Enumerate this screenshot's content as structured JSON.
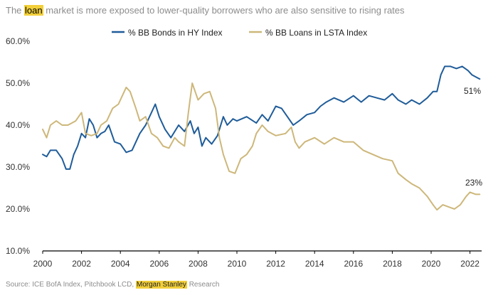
{
  "title": {
    "before": "The ",
    "highlight": "loan",
    "after": " market is more exposed to lower-quality borrowers who are also sensitive to rising rates"
  },
  "source": {
    "before": "Source: ICE BofA Index, Pitchbook LCD, ",
    "highlight": "Morgan Stanley",
    "after": " Research"
  },
  "colors": {
    "bonds": "#1f5c99",
    "loans": "#cdb77a",
    "axis": "#000000",
    "highlight": "#f2cf3a"
  },
  "chart_data": {
    "type": "line",
    "ylim": [
      10,
      60
    ],
    "yticks": [
      10,
      20,
      30,
      40,
      50,
      60
    ],
    "ytick_labels": [
      "10.0%",
      "20.0%",
      "30.0%",
      "40.0%",
      "50.0%",
      "60.0%"
    ],
    "xlim": [
      2000,
      2022.6
    ],
    "xticks": [
      2000,
      2002,
      2004,
      2006,
      2008,
      2010,
      2012,
      2014,
      2016,
      2018,
      2020,
      2022
    ],
    "xtick_labels": [
      "2000",
      "2002",
      "2004",
      "2006",
      "2008",
      "2010",
      "2012",
      "2014",
      "2016",
      "2018",
      "2020",
      "2022"
    ],
    "grid": false,
    "legend": "top-center",
    "series": [
      {
        "name": "% BB Bonds in HY Index",
        "end_label": "51%",
        "points": [
          [
            2000.0,
            33.0
          ],
          [
            2000.2,
            32.5
          ],
          [
            2000.4,
            34.0
          ],
          [
            2000.7,
            34.0
          ],
          [
            2001.0,
            32.0
          ],
          [
            2001.2,
            29.5
          ],
          [
            2001.4,
            29.5
          ],
          [
            2001.6,
            33.0
          ],
          [
            2001.8,
            35.0
          ],
          [
            2002.0,
            38.0
          ],
          [
            2002.2,
            37.0
          ],
          [
            2002.4,
            41.5
          ],
          [
            2002.6,
            40.0
          ],
          [
            2002.8,
            37.0
          ],
          [
            2003.0,
            38.0
          ],
          [
            2003.2,
            38.5
          ],
          [
            2003.4,
            40.0
          ],
          [
            2003.7,
            36.0
          ],
          [
            2004.0,
            35.5
          ],
          [
            2004.3,
            33.5
          ],
          [
            2004.6,
            34.0
          ],
          [
            2005.0,
            38.0
          ],
          [
            2005.3,
            40.0
          ],
          [
            2005.6,
            43.0
          ],
          [
            2005.8,
            45.0
          ],
          [
            2006.0,
            42.0
          ],
          [
            2006.3,
            39.0
          ],
          [
            2006.6,
            37.0
          ],
          [
            2007.0,
            40.0
          ],
          [
            2007.3,
            38.5
          ],
          [
            2007.6,
            41.0
          ],
          [
            2007.8,
            38.0
          ],
          [
            2008.0,
            39.5
          ],
          [
            2008.2,
            35.0
          ],
          [
            2008.4,
            37.0
          ],
          [
            2008.7,
            35.5
          ],
          [
            2009.0,
            37.5
          ],
          [
            2009.3,
            42.0
          ],
          [
            2009.5,
            40.0
          ],
          [
            2009.8,
            41.5
          ],
          [
            2010.0,
            41.0
          ],
          [
            2010.5,
            42.0
          ],
          [
            2011.0,
            40.5
          ],
          [
            2011.3,
            42.5
          ],
          [
            2011.6,
            41.0
          ],
          [
            2012.0,
            44.5
          ],
          [
            2012.3,
            44.0
          ],
          [
            2012.6,
            42.0
          ],
          [
            2012.9,
            40.0
          ],
          [
            2013.2,
            41.0
          ],
          [
            2013.6,
            42.5
          ],
          [
            2014.0,
            43.0
          ],
          [
            2014.3,
            44.5
          ],
          [
            2014.6,
            45.5
          ],
          [
            2015.0,
            46.5
          ],
          [
            2015.5,
            45.5
          ],
          [
            2016.0,
            47.0
          ],
          [
            2016.4,
            45.5
          ],
          [
            2016.8,
            47.0
          ],
          [
            2017.2,
            46.5
          ],
          [
            2017.6,
            46.0
          ],
          [
            2018.0,
            47.5
          ],
          [
            2018.3,
            46.0
          ],
          [
            2018.7,
            45.0
          ],
          [
            2019.0,
            46.0
          ],
          [
            2019.4,
            45.0
          ],
          [
            2019.8,
            46.5
          ],
          [
            2020.1,
            48.0
          ],
          [
            2020.3,
            48.0
          ],
          [
            2020.5,
            52.0
          ],
          [
            2020.7,
            54.0
          ],
          [
            2021.0,
            54.0
          ],
          [
            2021.3,
            53.5
          ],
          [
            2021.6,
            54.0
          ],
          [
            2021.9,
            53.0
          ],
          [
            2022.1,
            52.0
          ],
          [
            2022.3,
            51.5
          ],
          [
            2022.5,
            51.0
          ]
        ]
      },
      {
        "name": "% BB Loans in LSTA Index",
        "end_label": "23%",
        "points": [
          [
            2000.0,
            39.0
          ],
          [
            2000.2,
            37.0
          ],
          [
            2000.4,
            40.0
          ],
          [
            2000.7,
            41.0
          ],
          [
            2001.0,
            40.0
          ],
          [
            2001.3,
            40.0
          ],
          [
            2001.7,
            41.0
          ],
          [
            2002.0,
            43.0
          ],
          [
            2002.2,
            38.0
          ],
          [
            2002.5,
            37.5
          ],
          [
            2002.8,
            38.0
          ],
          [
            2003.0,
            40.0
          ],
          [
            2003.3,
            41.0
          ],
          [
            2003.6,
            44.0
          ],
          [
            2003.9,
            45.0
          ],
          [
            2004.1,
            47.0
          ],
          [
            2004.3,
            49.0
          ],
          [
            2004.5,
            48.0
          ],
          [
            2004.8,
            44.0
          ],
          [
            2005.0,
            41.0
          ],
          [
            2005.3,
            42.0
          ],
          [
            2005.6,
            38.0
          ],
          [
            2005.9,
            37.0
          ],
          [
            2006.2,
            35.0
          ],
          [
            2006.5,
            34.5
          ],
          [
            2006.8,
            37.0
          ],
          [
            2007.0,
            36.0
          ],
          [
            2007.3,
            35.0
          ],
          [
            2007.5,
            43.0
          ],
          [
            2007.7,
            50.0
          ],
          [
            2008.0,
            46.0
          ],
          [
            2008.3,
            47.5
          ],
          [
            2008.6,
            48.0
          ],
          [
            2008.9,
            44.0
          ],
          [
            2009.1,
            37.0
          ],
          [
            2009.3,
            33.0
          ],
          [
            2009.6,
            29.0
          ],
          [
            2009.9,
            28.5
          ],
          [
            2010.2,
            32.0
          ],
          [
            2010.5,
            33.0
          ],
          [
            2010.8,
            35.0
          ],
          [
            2011.0,
            38.0
          ],
          [
            2011.3,
            40.0
          ],
          [
            2011.6,
            38.5
          ],
          [
            2012.0,
            37.5
          ],
          [
            2012.5,
            38.0
          ],
          [
            2012.8,
            39.5
          ],
          [
            2013.0,
            36.0
          ],
          [
            2013.2,
            34.5
          ],
          [
            2013.5,
            36.0
          ],
          [
            2014.0,
            37.0
          ],
          [
            2014.5,
            35.5
          ],
          [
            2015.0,
            37.0
          ],
          [
            2015.5,
            36.0
          ],
          [
            2016.0,
            36.0
          ],
          [
            2016.5,
            34.0
          ],
          [
            2017.0,
            33.0
          ],
          [
            2017.5,
            32.0
          ],
          [
            2018.0,
            31.5
          ],
          [
            2018.3,
            28.5
          ],
          [
            2018.7,
            27.0
          ],
          [
            2019.0,
            26.0
          ],
          [
            2019.4,
            25.0
          ],
          [
            2019.8,
            23.0
          ],
          [
            2020.1,
            21.0
          ],
          [
            2020.3,
            19.8
          ],
          [
            2020.6,
            21.0
          ],
          [
            2020.9,
            20.5
          ],
          [
            2021.2,
            20.0
          ],
          [
            2021.5,
            21.0
          ],
          [
            2021.8,
            23.0
          ],
          [
            2022.0,
            24.0
          ],
          [
            2022.3,
            23.5
          ],
          [
            2022.5,
            23.5
          ]
        ]
      }
    ]
  }
}
